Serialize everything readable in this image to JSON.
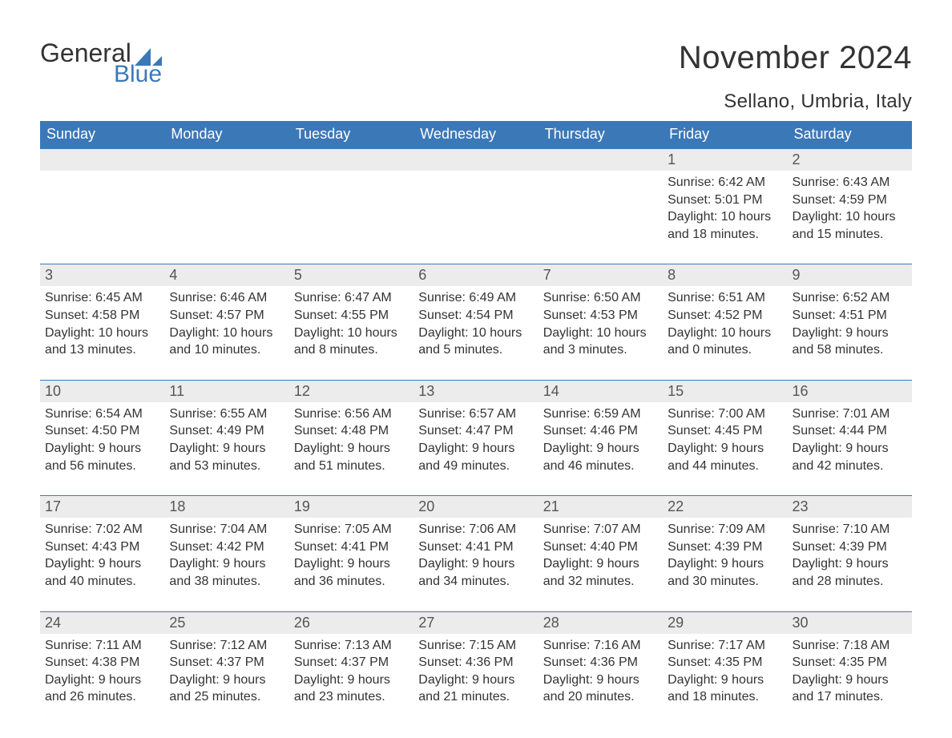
{
  "branding": {
    "logo_word_1": "General",
    "logo_word_2": "Blue",
    "logo_text_color": "#333333",
    "logo_accent_color": "#3b78b8"
  },
  "header": {
    "month_title": "November 2024",
    "location": "Sellano, Umbria, Italy"
  },
  "styling": {
    "page_background": "#ffffff",
    "header_bar_color": "#3b78b8",
    "header_bar_text_color": "#ffffff",
    "row_divider_color": "#3b78b8",
    "daynum_row_background": "#ececec",
    "body_text_color": "#333333",
    "title_fontsize_pt": 30,
    "location_fontsize_pt": 18,
    "weekday_fontsize_pt": 14,
    "daynum_fontsize_pt": 14,
    "body_fontsize_pt": 12
  },
  "weekdays": [
    "Sunday",
    "Monday",
    "Tuesday",
    "Wednesday",
    "Thursday",
    "Friday",
    "Saturday"
  ],
  "weeks": [
    [
      {
        "day": null
      },
      {
        "day": null
      },
      {
        "day": null
      },
      {
        "day": null
      },
      {
        "day": null
      },
      {
        "day": "1",
        "sunrise": "Sunrise: 6:42 AM",
        "sunset": "Sunset: 5:01 PM",
        "daylight": "Daylight: 10 hours and 18 minutes."
      },
      {
        "day": "2",
        "sunrise": "Sunrise: 6:43 AM",
        "sunset": "Sunset: 4:59 PM",
        "daylight": "Daylight: 10 hours and 15 minutes."
      }
    ],
    [
      {
        "day": "3",
        "sunrise": "Sunrise: 6:45 AM",
        "sunset": "Sunset: 4:58 PM",
        "daylight": "Daylight: 10 hours and 13 minutes."
      },
      {
        "day": "4",
        "sunrise": "Sunrise: 6:46 AM",
        "sunset": "Sunset: 4:57 PM",
        "daylight": "Daylight: 10 hours and 10 minutes."
      },
      {
        "day": "5",
        "sunrise": "Sunrise: 6:47 AM",
        "sunset": "Sunset: 4:55 PM",
        "daylight": "Daylight: 10 hours and 8 minutes."
      },
      {
        "day": "6",
        "sunrise": "Sunrise: 6:49 AM",
        "sunset": "Sunset: 4:54 PM",
        "daylight": "Daylight: 10 hours and 5 minutes."
      },
      {
        "day": "7",
        "sunrise": "Sunrise: 6:50 AM",
        "sunset": "Sunset: 4:53 PM",
        "daylight": "Daylight: 10 hours and 3 minutes."
      },
      {
        "day": "8",
        "sunrise": "Sunrise: 6:51 AM",
        "sunset": "Sunset: 4:52 PM",
        "daylight": "Daylight: 10 hours and 0 minutes."
      },
      {
        "day": "9",
        "sunrise": "Sunrise: 6:52 AM",
        "sunset": "Sunset: 4:51 PM",
        "daylight": "Daylight: 9 hours and 58 minutes."
      }
    ],
    [
      {
        "day": "10",
        "sunrise": "Sunrise: 6:54 AM",
        "sunset": "Sunset: 4:50 PM",
        "daylight": "Daylight: 9 hours and 56 minutes."
      },
      {
        "day": "11",
        "sunrise": "Sunrise: 6:55 AM",
        "sunset": "Sunset: 4:49 PM",
        "daylight": "Daylight: 9 hours and 53 minutes."
      },
      {
        "day": "12",
        "sunrise": "Sunrise: 6:56 AM",
        "sunset": "Sunset: 4:48 PM",
        "daylight": "Daylight: 9 hours and 51 minutes."
      },
      {
        "day": "13",
        "sunrise": "Sunrise: 6:57 AM",
        "sunset": "Sunset: 4:47 PM",
        "daylight": "Daylight: 9 hours and 49 minutes."
      },
      {
        "day": "14",
        "sunrise": "Sunrise: 6:59 AM",
        "sunset": "Sunset: 4:46 PM",
        "daylight": "Daylight: 9 hours and 46 minutes."
      },
      {
        "day": "15",
        "sunrise": "Sunrise: 7:00 AM",
        "sunset": "Sunset: 4:45 PM",
        "daylight": "Daylight: 9 hours and 44 minutes."
      },
      {
        "day": "16",
        "sunrise": "Sunrise: 7:01 AM",
        "sunset": "Sunset: 4:44 PM",
        "daylight": "Daylight: 9 hours and 42 minutes."
      }
    ],
    [
      {
        "day": "17",
        "sunrise": "Sunrise: 7:02 AM",
        "sunset": "Sunset: 4:43 PM",
        "daylight": "Daylight: 9 hours and 40 minutes."
      },
      {
        "day": "18",
        "sunrise": "Sunrise: 7:04 AM",
        "sunset": "Sunset: 4:42 PM",
        "daylight": "Daylight: 9 hours and 38 minutes."
      },
      {
        "day": "19",
        "sunrise": "Sunrise: 7:05 AM",
        "sunset": "Sunset: 4:41 PM",
        "daylight": "Daylight: 9 hours and 36 minutes."
      },
      {
        "day": "20",
        "sunrise": "Sunrise: 7:06 AM",
        "sunset": "Sunset: 4:41 PM",
        "daylight": "Daylight: 9 hours and 34 minutes."
      },
      {
        "day": "21",
        "sunrise": "Sunrise: 7:07 AM",
        "sunset": "Sunset: 4:40 PM",
        "daylight": "Daylight: 9 hours and 32 minutes."
      },
      {
        "day": "22",
        "sunrise": "Sunrise: 7:09 AM",
        "sunset": "Sunset: 4:39 PM",
        "daylight": "Daylight: 9 hours and 30 minutes."
      },
      {
        "day": "23",
        "sunrise": "Sunrise: 7:10 AM",
        "sunset": "Sunset: 4:39 PM",
        "daylight": "Daylight: 9 hours and 28 minutes."
      }
    ],
    [
      {
        "day": "24",
        "sunrise": "Sunrise: 7:11 AM",
        "sunset": "Sunset: 4:38 PM",
        "daylight": "Daylight: 9 hours and 26 minutes."
      },
      {
        "day": "25",
        "sunrise": "Sunrise: 7:12 AM",
        "sunset": "Sunset: 4:37 PM",
        "daylight": "Daylight: 9 hours and 25 minutes."
      },
      {
        "day": "26",
        "sunrise": "Sunrise: 7:13 AM",
        "sunset": "Sunset: 4:37 PM",
        "daylight": "Daylight: 9 hours and 23 minutes."
      },
      {
        "day": "27",
        "sunrise": "Sunrise: 7:15 AM",
        "sunset": "Sunset: 4:36 PM",
        "daylight": "Daylight: 9 hours and 21 minutes."
      },
      {
        "day": "28",
        "sunrise": "Sunrise: 7:16 AM",
        "sunset": "Sunset: 4:36 PM",
        "daylight": "Daylight: 9 hours and 20 minutes."
      },
      {
        "day": "29",
        "sunrise": "Sunrise: 7:17 AM",
        "sunset": "Sunset: 4:35 PM",
        "daylight": "Daylight: 9 hours and 18 minutes."
      },
      {
        "day": "30",
        "sunrise": "Sunrise: 7:18 AM",
        "sunset": "Sunset: 4:35 PM",
        "daylight": "Daylight: 9 hours and 17 minutes."
      }
    ]
  ]
}
